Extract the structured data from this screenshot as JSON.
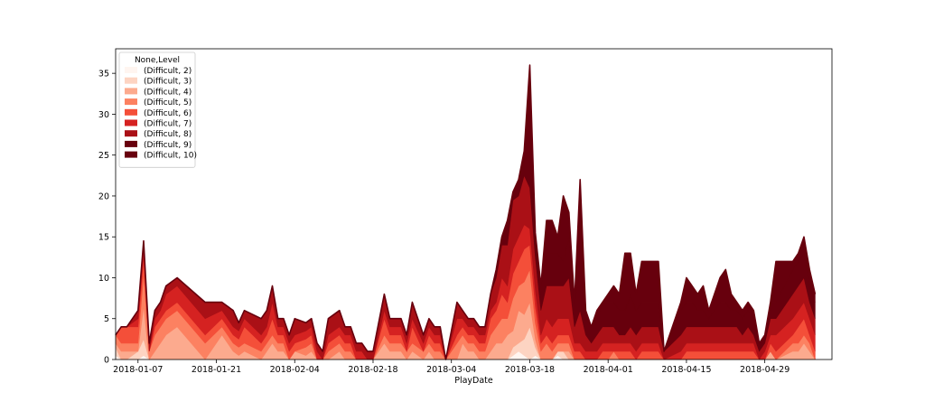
{
  "chart_data": {
    "type": "area",
    "stacked": true,
    "xlabel": "PlayDate",
    "ylabel": "",
    "title": "",
    "ylim": [
      0,
      38
    ],
    "yticks": [
      0,
      5,
      10,
      15,
      20,
      25,
      30,
      35
    ],
    "xlim": [
      "2018-01-03",
      "2018-05-11"
    ],
    "xticks": [
      "2018-01-07",
      "2018-01-21",
      "2018-02-04",
      "2018-02-18",
      "2018-03-04",
      "2018-03-18",
      "2018-04-01",
      "2018-04-15",
      "2018-04-29"
    ],
    "grid": false,
    "legend": {
      "title": "None,Level",
      "placement": "top-left",
      "entries": [
        "(Difficult, 2)",
        "(Difficult, 3)",
        "(Difficult, 4)",
        "(Difficult, 5)",
        "(Difficult, 6)",
        "(Difficult, 7)",
        "(Difficult, 8)",
        "(Difficult, 9)",
        "(Difficult, 10)"
      ]
    },
    "colors": [
      "#fff5f0",
      "#fdd4c2",
      "#fcaa8e",
      "#fc8161",
      "#f44f39",
      "#d52221",
      "#aa1016",
      "#67000d",
      "#67000d"
    ],
    "x": [
      "2018-01-03",
      "2018-01-04",
      "2018-01-05",
      "2018-01-07",
      "2018-01-08",
      "2018-01-09",
      "2018-01-10",
      "2018-01-11",
      "2018-01-12",
      "2018-01-14",
      "2018-01-19",
      "2018-01-22",
      "2018-01-24",
      "2018-01-25",
      "2018-01-26",
      "2018-01-29",
      "2018-01-30",
      "2018-01-31",
      "2018-02-01",
      "2018-02-02",
      "2018-02-03",
      "2018-02-04",
      "2018-02-06",
      "2018-02-07",
      "2018-02-08",
      "2018-02-09",
      "2018-02-10",
      "2018-02-12",
      "2018-02-13",
      "2018-02-14",
      "2018-02-15",
      "2018-02-16",
      "2018-02-17",
      "2018-02-18",
      "2018-02-20",
      "2018-02-21",
      "2018-02-22",
      "2018-02-23",
      "2018-02-24",
      "2018-02-25",
      "2018-02-27",
      "2018-02-28",
      "2018-03-01",
      "2018-03-02",
      "2018-03-03",
      "2018-03-05",
      "2018-03-06",
      "2018-03-07",
      "2018-03-08",
      "2018-03-09",
      "2018-03-10",
      "2018-03-11",
      "2018-03-12",
      "2018-03-13",
      "2018-03-14",
      "2018-03-15",
      "2018-03-16",
      "2018-03-17",
      "2018-03-18",
      "2018-03-19",
      "2018-03-20",
      "2018-03-21",
      "2018-03-22",
      "2018-03-23",
      "2018-03-24",
      "2018-03-25",
      "2018-03-26",
      "2018-03-27",
      "2018-03-28",
      "2018-03-29",
      "2018-03-30",
      "2018-03-31",
      "2018-04-01",
      "2018-04-02",
      "2018-04-03",
      "2018-04-04",
      "2018-04-05",
      "2018-04-06",
      "2018-04-07",
      "2018-04-08",
      "2018-04-09",
      "2018-04-10",
      "2018-04-11",
      "2018-04-14",
      "2018-04-15",
      "2018-04-16",
      "2018-04-17",
      "2018-04-18",
      "2018-04-19",
      "2018-04-20",
      "2018-04-21",
      "2018-04-22",
      "2018-04-23",
      "2018-04-24",
      "2018-04-25",
      "2018-04-26",
      "2018-04-27",
      "2018-04-28",
      "2018-04-29",
      "2018-04-30",
      "2018-05-01",
      "2018-05-04",
      "2018-05-05",
      "2018-05-06",
      "2018-05-07",
      "2018-05-08"
    ],
    "series": [
      {
        "name": "(Difficult, 2)",
        "values": [
          0.5,
          0,
          0,
          0,
          0.5,
          0,
          0,
          0,
          0,
          0,
          0,
          0,
          0,
          0,
          0,
          0,
          0,
          0,
          0,
          0,
          0,
          0,
          0,
          0,
          0,
          0,
          0,
          0,
          0,
          0,
          0,
          0,
          0,
          0,
          0,
          0,
          0,
          0,
          0,
          0,
          0,
          0,
          0,
          0,
          0,
          0,
          0,
          0,
          0,
          0,
          0,
          0,
          0,
          0,
          0,
          0.5,
          1,
          0.5,
          0,
          0.5,
          0,
          0,
          0,
          0.5,
          0,
          0,
          0,
          0,
          0,
          0,
          0,
          0,
          0,
          0,
          0,
          0,
          0,
          0,
          0,
          0,
          0,
          0,
          0,
          0,
          0,
          0,
          0,
          0,
          0,
          0,
          0,
          0,
          0,
          0,
          0,
          0,
          0,
          0,
          0,
          0,
          0,
          0,
          0,
          0,
          0,
          0
        ]
      },
      {
        "name": "(Difficult, 3)",
        "values": [
          1,
          0,
          0,
          1,
          2,
          0,
          0,
          0,
          0,
          0,
          0,
          0,
          0,
          0,
          0,
          0,
          0,
          0,
          0,
          0,
          0,
          0,
          0,
          0,
          0,
          0,
          0,
          0,
          0,
          0,
          0,
          0,
          0,
          0,
          0,
          0,
          0,
          0,
          0,
          0,
          0,
          0,
          0,
          0,
          0,
          0,
          0,
          0,
          0,
          0,
          0,
          0,
          0,
          0,
          0,
          1,
          1,
          2,
          4,
          1,
          0,
          0,
          0,
          0.5,
          1,
          0,
          0,
          0,
          0,
          0,
          0,
          0,
          0,
          0,
          0,
          0,
          0,
          0,
          0,
          0,
          0,
          0,
          0,
          0,
          0,
          0,
          0,
          0,
          0,
          0,
          0,
          0,
          0,
          0,
          0,
          0,
          0,
          0,
          0,
          0,
          0,
          0,
          0,
          0,
          0,
          0
        ]
      },
      {
        "name": "(Difficult, 4)",
        "values": [
          0.5,
          1,
          1,
          0,
          4,
          0,
          1,
          2,
          3,
          4,
          0,
          3,
          1,
          0.5,
          1,
          0,
          1,
          2,
          1,
          1,
          0,
          1,
          0.5,
          1,
          0,
          0,
          0,
          1,
          0,
          0,
          0,
          0,
          0,
          0,
          2,
          1,
          1,
          1,
          0,
          1,
          0,
          1,
          0,
          0,
          0,
          0,
          2,
          1,
          1,
          0,
          0,
          1,
          2,
          2,
          3,
          2,
          4,
          3,
          3,
          1,
          0,
          0,
          0,
          0,
          0,
          1,
          0,
          0,
          0,
          0,
          0,
          0,
          0,
          0,
          0,
          0,
          0,
          0,
          0,
          0,
          0,
          0,
          0,
          0,
          0,
          0,
          0,
          0,
          0,
          0,
          0,
          0,
          0,
          0,
          0,
          0,
          0,
          0,
          0,
          1,
          0,
          1,
          1,
          2,
          1,
          0
        ]
      },
      {
        "name": "(Difficult, 5)",
        "values": [
          1,
          1,
          1,
          1,
          4,
          1,
          2,
          2,
          2,
          2,
          2,
          1,
          1,
          1,
          1,
          1,
          1,
          1,
          1,
          1,
          0,
          0,
          1,
          1,
          0,
          0,
          1,
          1,
          1,
          1,
          0,
          0,
          0,
          0,
          1,
          1,
          1,
          1,
          1,
          1,
          1,
          1,
          1,
          1,
          0,
          2,
          1,
          1,
          1,
          1,
          1,
          2,
          2,
          3,
          2,
          4,
          3,
          4,
          4,
          2,
          1,
          2,
          1,
          1,
          1,
          1,
          0,
          0,
          0,
          0,
          0,
          0,
          0,
          1,
          0,
          0,
          0,
          0,
          0,
          0,
          0,
          0,
          0,
          0,
          0,
          0,
          0,
          0,
          0,
          0,
          0,
          0,
          0,
          0,
          0,
          0,
          0,
          0,
          0,
          0,
          0,
          1,
          1,
          1,
          1,
          0
        ]
      },
      {
        "name": "(Difficult, 6)",
        "values": [
          0,
          2,
          2,
          2,
          2,
          0,
          1,
          1,
          1,
          1,
          1,
          1,
          1,
          1,
          2,
          1,
          1,
          2,
          1,
          1,
          1,
          1,
          1,
          1,
          0,
          0,
          1,
          1,
          1,
          1,
          0,
          0,
          0,
          0,
          2,
          1,
          1,
          1,
          0,
          2,
          0,
          1,
          1,
          1,
          0,
          1,
          1,
          1,
          1,
          1,
          1,
          2,
          2,
          3,
          2,
          3,
          3,
          4,
          3,
          2,
          1,
          1,
          1,
          1,
          1,
          1,
          1,
          1,
          0,
          0,
          0,
          1,
          1,
          0,
          1,
          1,
          1,
          0,
          1,
          1,
          1,
          1,
          0,
          0,
          1,
          1,
          1,
          1,
          1,
          1,
          1,
          1,
          1,
          1,
          1,
          1,
          1,
          0,
          0,
          1,
          1,
          1,
          2,
          2,
          1,
          1
        ]
      },
      {
        "name": "(Difficult, 7)",
        "values": [
          0,
          0,
          0,
          1,
          1,
          0,
          1,
          1,
          2,
          2,
          2,
          1,
          1,
          1,
          1,
          1,
          1,
          2,
          1,
          1,
          1,
          1,
          1,
          1,
          1,
          0,
          1,
          1,
          1,
          1,
          1,
          1,
          0,
          0,
          1,
          1,
          1,
          1,
          1,
          1,
          1,
          1,
          1,
          1,
          0,
          2,
          1,
          1,
          1,
          1,
          1,
          1,
          1,
          2,
          2,
          3,
          3,
          3,
          2,
          2,
          1,
          2,
          2,
          2,
          2,
          2,
          1,
          1,
          1,
          1,
          1,
          1,
          1,
          1,
          1,
          1,
          1,
          1,
          1,
          1,
          1,
          1,
          0,
          1,
          1,
          1,
          1,
          1,
          1,
          1,
          1,
          1,
          1,
          1,
          1,
          1,
          1,
          0,
          1,
          1,
          2,
          2,
          2,
          2,
          2,
          2
        ]
      },
      {
        "name": "(Difficult, 8)",
        "values": [
          0,
          0,
          0,
          1,
          1,
          1,
          1,
          1,
          1,
          1,
          2,
          1,
          2,
          1,
          1,
          2,
          2,
          2,
          1,
          1,
          1,
          2,
          1,
          1,
          1,
          1,
          2,
          2,
          1,
          1,
          1,
          1,
          1,
          1,
          2,
          1,
          1,
          1,
          1,
          2,
          1,
          1,
          1,
          1,
          0,
          2,
          1,
          1,
          1,
          1,
          1,
          2,
          3,
          4,
          5,
          6,
          5,
          6,
          5,
          4,
          3,
          4,
          5,
          4,
          4,
          5,
          2,
          4,
          2,
          1,
          2,
          2,
          2,
          2,
          1,
          1,
          2,
          2,
          2,
          2,
          2,
          2,
          1,
          2,
          2,
          2,
          2,
          2,
          2,
          2,
          2,
          2,
          2,
          2,
          1,
          2,
          1,
          1,
          1,
          2,
          2,
          3,
          3,
          3,
          2,
          2
        ]
      },
      {
        "name": "(Difficult, 9)",
        "values": [
          0,
          0,
          0,
          0,
          0,
          0,
          0,
          0,
          0,
          0,
          0,
          0,
          0,
          0,
          0,
          0,
          0,
          0,
          0,
          0,
          0,
          0,
          0,
          0,
          0,
          0,
          0,
          0,
          0,
          0,
          0,
          0,
          0,
          0,
          0,
          0,
          0,
          0,
          0,
          0,
          0,
          0,
          0,
          0,
          0,
          0,
          0,
          0,
          0,
          0,
          0,
          0,
          1,
          1,
          2,
          1,
          2,
          2,
          4,
          2,
          3,
          4,
          4,
          4,
          3,
          5,
          3,
          5,
          2,
          2,
          2,
          3,
          3,
          3,
          3,
          3,
          4,
          3,
          3,
          3,
          3,
          3,
          0,
          3,
          3,
          3,
          2,
          2,
          1,
          2,
          3,
          3,
          2,
          2,
          2,
          2,
          2,
          1,
          1,
          2,
          2,
          3,
          3,
          3,
          2,
          2
        ]
      },
      {
        "name": "(Difficult, 10)",
        "values": [
          0,
          0,
          0,
          0,
          0,
          0,
          0,
          0,
          0,
          0,
          0,
          0,
          0,
          0,
          0,
          0,
          0,
          0,
          0,
          0,
          0,
          0,
          0,
          0,
          0,
          0,
          0,
          0,
          0,
          0,
          0,
          0,
          0,
          0,
          0,
          0,
          0,
          0,
          0,
          0,
          0,
          0,
          0,
          0,
          0,
          0,
          0,
          0,
          0,
          0,
          0,
          0,
          0,
          0,
          1,
          0,
          0,
          1,
          11,
          1,
          0,
          4,
          4,
          2,
          8,
          3,
          0,
          11,
          1,
          0,
          1,
          0,
          1,
          2,
          2,
          7,
          5,
          2,
          5,
          5,
          5,
          5,
          0,
          1,
          3,
          2,
          2,
          3,
          1,
          2,
          3,
          4,
          2,
          1,
          1,
          1,
          1,
          0,
          0,
          0,
          5,
          1,
          1,
          2,
          2,
          1
        ]
      }
    ]
  }
}
